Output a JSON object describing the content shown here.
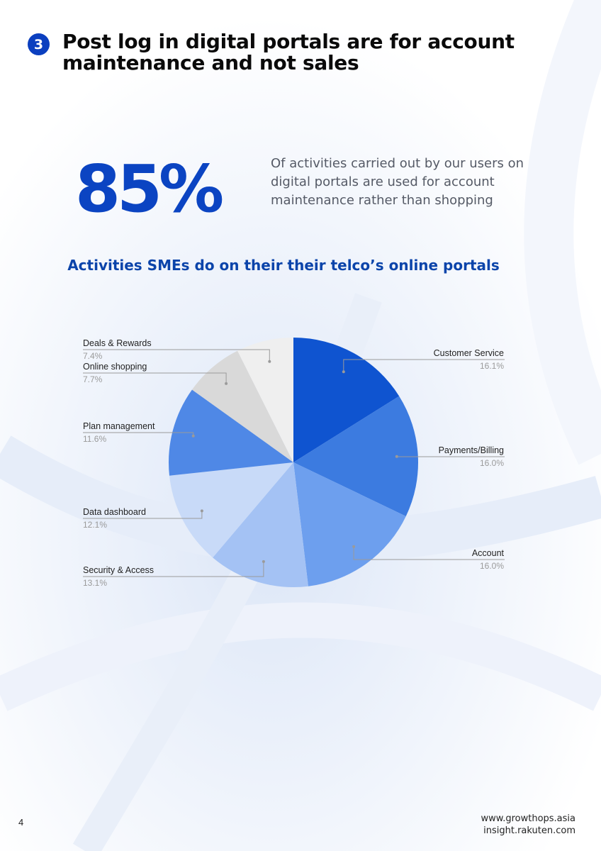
{
  "header": {
    "section_number": "3",
    "title": "Post log in digital portals are for account maintenance and not sales"
  },
  "stat": {
    "value": "85%",
    "description": "Of activities carried out by our users on digital portals are used for account maintenance rather than shopping"
  },
  "chart_data": {
    "type": "pie",
    "title": "Activities SMEs do on their their telco’s online portals",
    "slices": [
      {
        "label": "Customer Service",
        "value": 16.1,
        "display": "16.1%",
        "color": "#0f54d0"
      },
      {
        "label": "Payments/Billing",
        "value": 16.0,
        "display": "16.0%",
        "color": "#3c7be0"
      },
      {
        "label": "Account",
        "value": 16.0,
        "display": "16.0%",
        "color": "#6d9fee"
      },
      {
        "label": "Security & Access",
        "value": 13.1,
        "display": "13.1%",
        "color": "#a4c2f4"
      },
      {
        "label": "Data dashboard",
        "value": 12.1,
        "display": "12.1%",
        "color": "#c8daf8"
      },
      {
        "label": "Plan management",
        "value": 11.6,
        "display": "11.6%",
        "color": "#4f88e6"
      },
      {
        "label": "Online shopping",
        "value": 7.7,
        "display": "7.7%",
        "color": "#d9d9d9"
      },
      {
        "label": "Deals & Rewards",
        "value": 7.4,
        "display": "7.4%",
        "color": "#efefef"
      }
    ],
    "legend": "leader-line labels around the pie"
  },
  "footer": {
    "page_number": "4",
    "links": [
      "www.growthops.asia",
      "insight.rakuten.com"
    ]
  }
}
